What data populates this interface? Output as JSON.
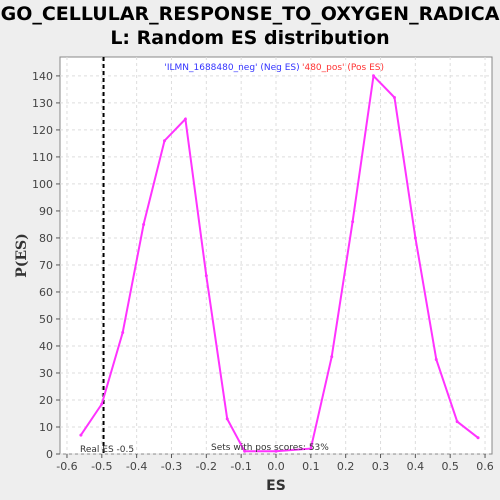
{
  "chart_data": {
    "type": "line",
    "title": "GO_CELLULAR_RESPONSE_TO_OXYGEN_RADICAL: Random ES distribution",
    "title_lines": [
      "GO_CELLULAR_RESPONSE_TO_OXYGEN_RADICA",
      "L: Random ES distribution"
    ],
    "xlabel": "ES",
    "ylabel": "P(ES)",
    "xlim": [
      -0.62,
      0.62
    ],
    "ylim": [
      0,
      147
    ],
    "xticks": [
      -0.6,
      -0.5,
      -0.4,
      -0.3,
      -0.2,
      -0.1,
      0.0,
      0.1,
      0.2,
      0.3,
      0.4,
      0.5,
      0.6
    ],
    "xtick_labels": [
      "-0.6",
      "-0.5",
      "-0.4",
      "-0.3",
      "-0.2",
      "-0.1",
      "0.0",
      "0.1",
      "0.2",
      "0.3",
      "0.4",
      "0.5",
      "0.6"
    ],
    "yticks": [
      0,
      10,
      20,
      30,
      40,
      50,
      60,
      70,
      80,
      90,
      100,
      110,
      120,
      130,
      140
    ],
    "grid": true,
    "series": [
      {
        "color": "#ff33ff",
        "x": [
          -0.56,
          -0.5,
          -0.44,
          -0.38,
          -0.32,
          -0.26,
          -0.2,
          -0.14,
          -0.09,
          0.0,
          0.1,
          0.16,
          0.22,
          0.28,
          0.34,
          0.4,
          0.46,
          0.52,
          0.58
        ],
        "y": [
          7,
          18.5,
          45,
          85,
          116,
          124,
          66,
          13,
          1,
          1,
          2,
          36,
          86,
          140,
          132,
          80,
          35,
          12,
          6
        ]
      }
    ],
    "real_es_line": {
      "x": -0.495,
      "color": "#000000"
    },
    "legend": {
      "neg_label": "'ILMN_1688480_neg' (Neg ES)",
      "neg_color": "#3333ff",
      "pos_label": "'480_pos' (Pos ES)",
      "pos_color": "#ff3333"
    },
    "annotations": {
      "real_es": "Real ES -0.5",
      "sets_pos": "Sets with pos scores: 53%"
    }
  }
}
